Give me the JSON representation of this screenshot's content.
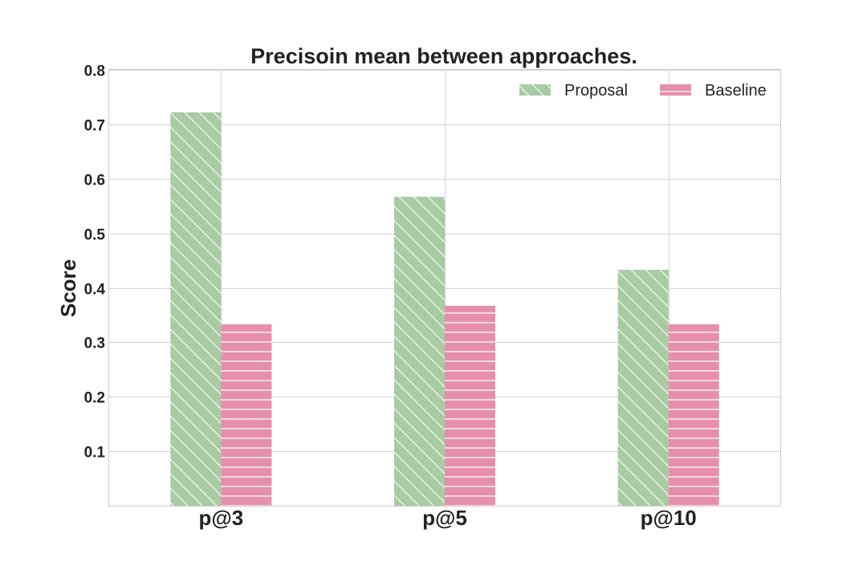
{
  "chart_data": {
    "type": "bar",
    "title": "Precisoin mean between approaches.",
    "xlabel": "",
    "ylabel": "Score",
    "categories": [
      "p@3",
      "p@5",
      "p@10"
    ],
    "series": [
      {
        "name": "Proposal",
        "values": [
          0.722,
          0.567,
          0.433
        ],
        "color": "#a8cba4",
        "hatch": "diagonal"
      },
      {
        "name": "Baseline",
        "values": [
          0.333,
          0.367,
          0.333
        ],
        "color": "#e68fab",
        "hatch": "horizontal"
      }
    ],
    "ylim": [
      0,
      0.8
    ],
    "yticks": [
      0.1,
      0.2,
      0.3,
      0.4,
      0.5,
      0.6,
      0.7,
      0.8
    ],
    "ytick_labels": [
      "0.1",
      "0.2",
      "0.3",
      "0.4",
      "0.5",
      "0.6",
      "0.7",
      "0.8"
    ],
    "grid": true,
    "legend_position": "top-right"
  }
}
